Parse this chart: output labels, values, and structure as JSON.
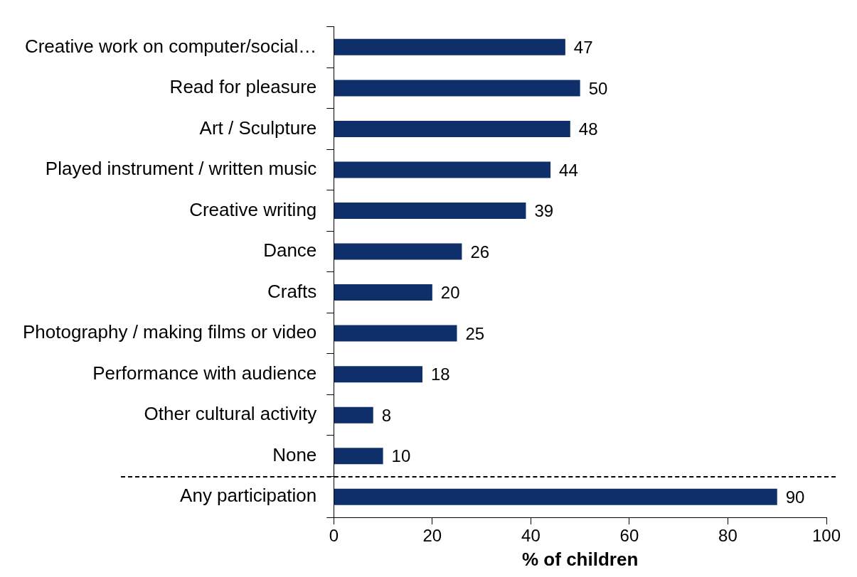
{
  "chart_data": {
    "type": "bar",
    "orientation": "horizontal",
    "xlabel": "% of children",
    "categories": [
      "Creative work on computer/social…",
      "Read for pleasure",
      "Art / Sculpture",
      "Played instrument / written music",
      "Creative writing",
      "Dance",
      "Crafts",
      "Photography / making films or video",
      "Performance with audience",
      "Other cultural activity",
      "None",
      "Any participation"
    ],
    "values": [
      47,
      50,
      48,
      44,
      39,
      26,
      20,
      25,
      18,
      8,
      10,
      90
    ],
    "color": "#0f2f6b",
    "xlim": [
      0,
      100
    ],
    "xticks": [
      0,
      20,
      40,
      60,
      80,
      100
    ],
    "data_labels": true,
    "grid": false,
    "legend": false
  }
}
